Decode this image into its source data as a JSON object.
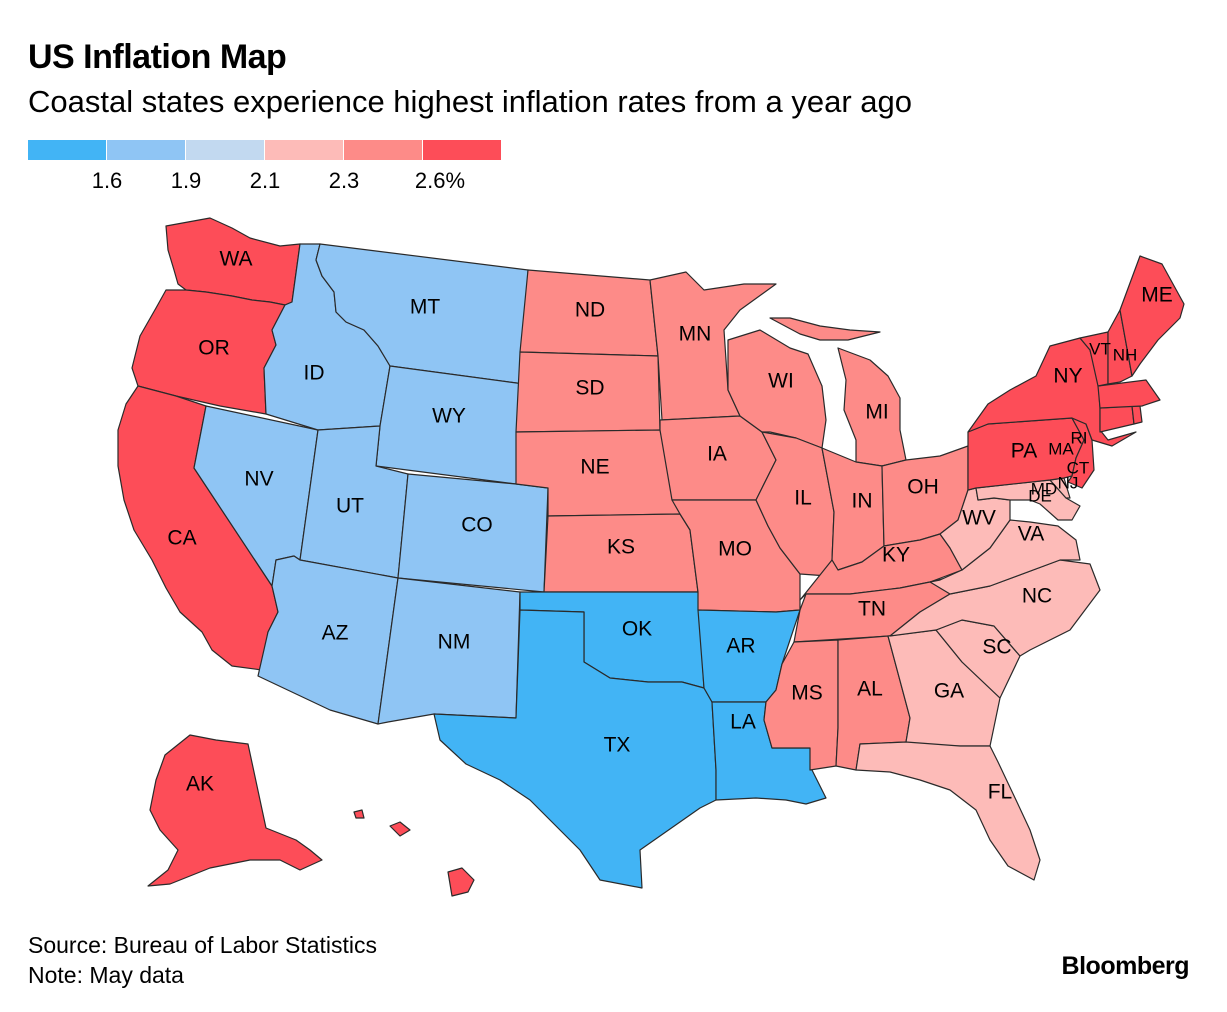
{
  "title": "US Inflation Map",
  "subtitle": "Coastal states experience highest inflation rates from a year ago",
  "legend": {
    "colors": [
      "#42b4f5",
      "#8fc5f4",
      "#c2d9f0",
      "#fdbbb8",
      "#fd8b88",
      "#fd4d58"
    ],
    "ticks": [
      "1.6",
      "1.9",
      "2.1",
      "2.3",
      "2.6%"
    ]
  },
  "footer": {
    "source": "Source: Bureau of Labor Statistics",
    "note": "Note: May data",
    "brand": "Bloomberg"
  },
  "states": [
    {
      "abbr": "WA",
      "bin": 5
    },
    {
      "abbr": "OR",
      "bin": 5
    },
    {
      "abbr": "CA",
      "bin": 5
    },
    {
      "abbr": "NV",
      "bin": 1
    },
    {
      "abbr": "ID",
      "bin": 1
    },
    {
      "abbr": "MT",
      "bin": 1
    },
    {
      "abbr": "WY",
      "bin": 1
    },
    {
      "abbr": "UT",
      "bin": 1
    },
    {
      "abbr": "CO",
      "bin": 1
    },
    {
      "abbr": "AZ",
      "bin": 1
    },
    {
      "abbr": "NM",
      "bin": 1
    },
    {
      "abbr": "ND",
      "bin": 4
    },
    {
      "abbr": "SD",
      "bin": 4
    },
    {
      "abbr": "NE",
      "bin": 4
    },
    {
      "abbr": "KS",
      "bin": 4
    },
    {
      "abbr": "OK",
      "bin": 0
    },
    {
      "abbr": "TX",
      "bin": 0
    },
    {
      "abbr": "MN",
      "bin": 4
    },
    {
      "abbr": "IA",
      "bin": 4
    },
    {
      "abbr": "MO",
      "bin": 4
    },
    {
      "abbr": "AR",
      "bin": 0
    },
    {
      "abbr": "LA",
      "bin": 0
    },
    {
      "abbr": "WI",
      "bin": 4
    },
    {
      "abbr": "IL",
      "bin": 4
    },
    {
      "abbr": "MI",
      "bin": 4
    },
    {
      "abbr": "IN",
      "bin": 4
    },
    {
      "abbr": "OH",
      "bin": 4
    },
    {
      "abbr": "KY",
      "bin": 4
    },
    {
      "abbr": "TN",
      "bin": 4
    },
    {
      "abbr": "MS",
      "bin": 4
    },
    {
      "abbr": "AL",
      "bin": 4
    },
    {
      "abbr": "GA",
      "bin": 3
    },
    {
      "abbr": "FL",
      "bin": 3
    },
    {
      "abbr": "SC",
      "bin": 3
    },
    {
      "abbr": "NC",
      "bin": 3
    },
    {
      "abbr": "VA",
      "bin": 3
    },
    {
      "abbr": "WV",
      "bin": 3
    },
    {
      "abbr": "MD",
      "bin": 3
    },
    {
      "abbr": "DE",
      "bin": 3
    },
    {
      "abbr": "PA",
      "bin": 5
    },
    {
      "abbr": "NJ",
      "bin": 5
    },
    {
      "abbr": "NY",
      "bin": 5
    },
    {
      "abbr": "CT",
      "bin": 5
    },
    {
      "abbr": "RI",
      "bin": 5
    },
    {
      "abbr": "MA",
      "bin": 5
    },
    {
      "abbr": "VT",
      "bin": 5
    },
    {
      "abbr": "NH",
      "bin": 5
    },
    {
      "abbr": "ME",
      "bin": 5
    },
    {
      "abbr": "AK",
      "bin": 5
    },
    {
      "abbr": "HI",
      "bin": 5
    }
  ]
}
